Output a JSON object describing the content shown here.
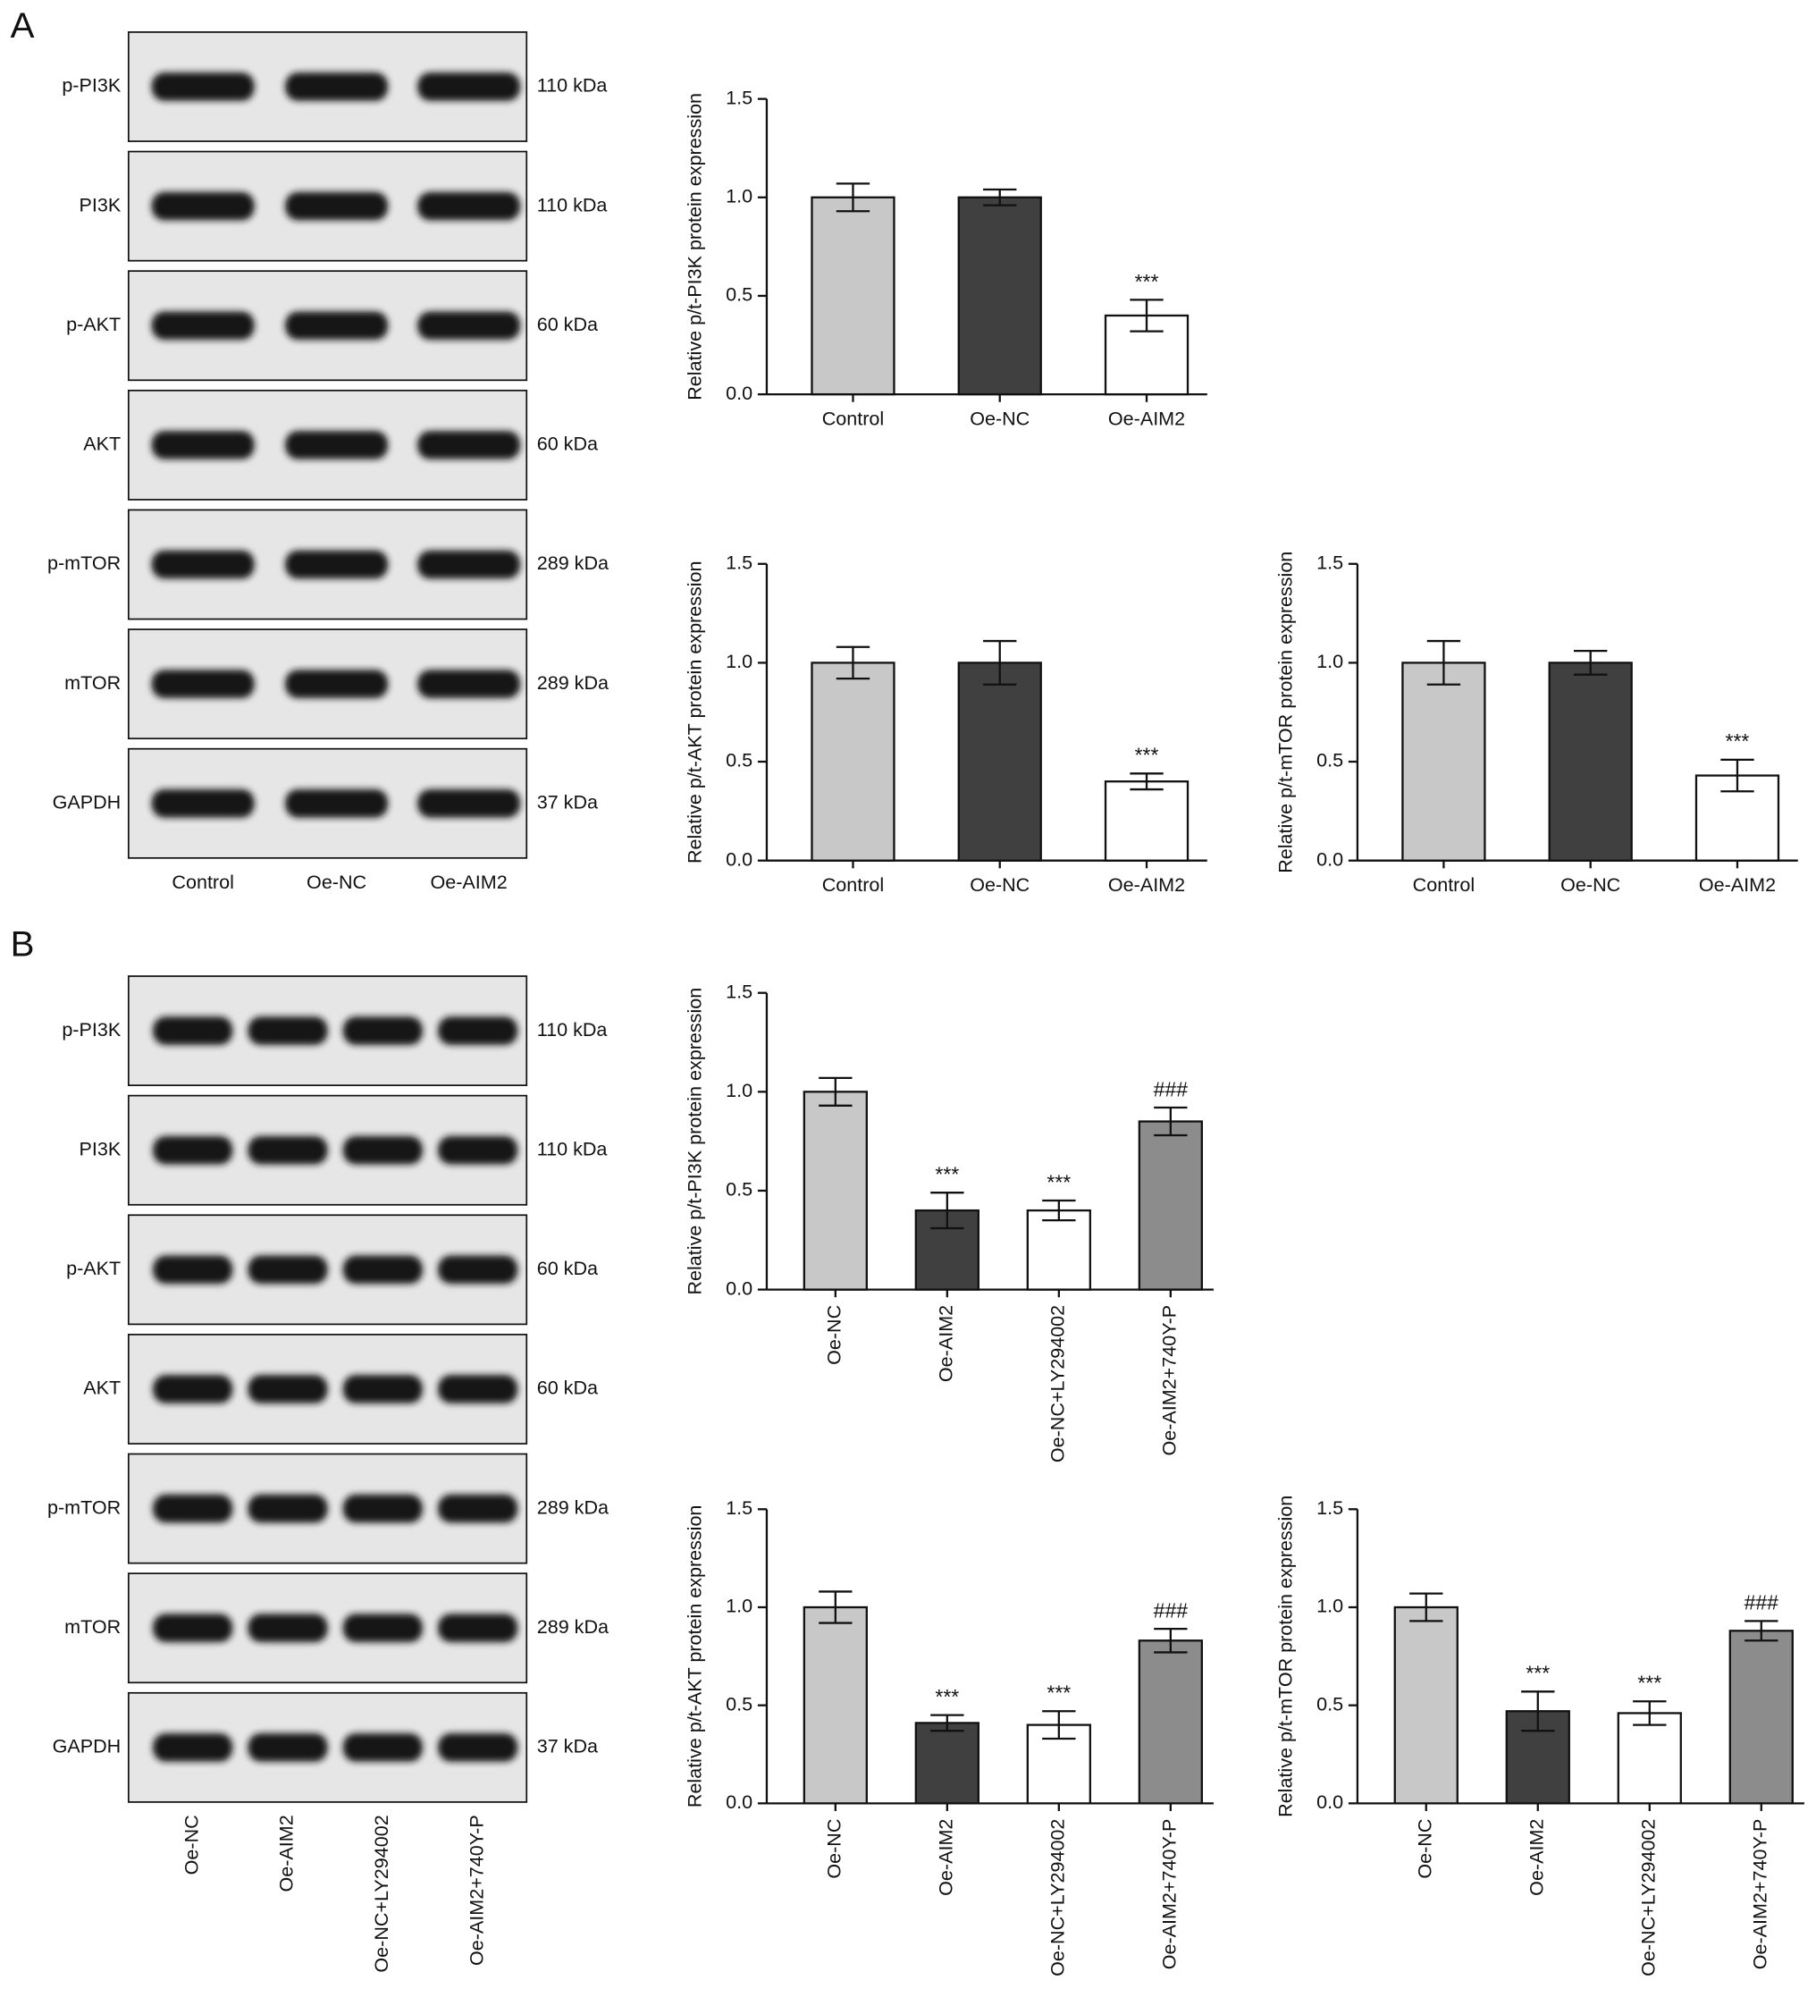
{
  "blots": [
    {
      "panel": "A",
      "lanes": [
        "Control",
        "Oe-NC",
        "Oe-AIM2"
      ],
      "rows": [
        {
          "protein": "p-PI3K",
          "size": "110 kDa"
        },
        {
          "protein": "PI3K",
          "size": "110 kDa"
        },
        {
          "protein": "p-AKT",
          "size": "60 kDa"
        },
        {
          "protein": "AKT",
          "size": "60 kDa"
        },
        {
          "protein": "p-mTOR",
          "size": "289 kDa"
        },
        {
          "protein": "mTOR",
          "size": "289 kDa"
        },
        {
          "protein": "GAPDH",
          "size": "37 kDa"
        }
      ]
    },
    {
      "panel": "B",
      "lanes": [
        "Oe-NC",
        "Oe-AIM2",
        "Oe-NC+LY294002",
        "Oe-AIM2+740Y-P"
      ],
      "rows": [
        {
          "protein": "p-PI3K",
          "size": "110 kDa"
        },
        {
          "protein": "PI3K",
          "size": "110 kDa"
        },
        {
          "protein": "p-AKT",
          "size": "60 kDa"
        },
        {
          "protein": "AKT",
          "size": "60 kDa"
        },
        {
          "protein": "p-mTOR",
          "size": "289 kDa"
        },
        {
          "protein": "mTOR",
          "size": "289 kDa"
        },
        {
          "protein": "GAPDH",
          "size": "37 kDa"
        }
      ]
    }
  ],
  "chart_data": [
    {
      "type": "bar",
      "ylabel": "Relative p/t-PI3K protein expression",
      "categories": [
        "Control",
        "Oe-NC",
        "Oe-AIM2"
      ],
      "values": [
        1.0,
        1.0,
        0.4
      ],
      "errors": [
        0.07,
        0.04,
        0.08
      ],
      "colors": [
        "#c8c8c8",
        "#404040",
        "#ffffff"
      ],
      "bar_labels": [
        null,
        null,
        "***"
      ],
      "rotated_labels": false,
      "ylim": [
        0,
        1.5
      ],
      "yticks": [
        {
          "value": 0,
          "label": "0.0"
        },
        {
          "value": 0.5,
          "label": "0.5"
        },
        {
          "value": 1,
          "label": "1.0"
        },
        {
          "value": 1.5,
          "label": "1.5"
        }
      ]
    },
    {
      "type": "bar",
      "ylabel": "Relative p/t-AKT protein expression",
      "categories": [
        "Control",
        "Oe-NC",
        "Oe-AIM2"
      ],
      "values": [
        1.0,
        1.0,
        0.4
      ],
      "errors": [
        0.08,
        0.11,
        0.04
      ],
      "colors": [
        "#c8c8c8",
        "#404040",
        "#ffffff"
      ],
      "bar_labels": [
        null,
        null,
        "***"
      ],
      "rotated_labels": false,
      "ylim": [
        0,
        1.5
      ],
      "yticks": [
        {
          "value": 0,
          "label": "0.0"
        },
        {
          "value": 0.5,
          "label": "0.5"
        },
        {
          "value": 1,
          "label": "1.0"
        },
        {
          "value": 1.5,
          "label": "1.5"
        }
      ]
    },
    {
      "type": "bar",
      "ylabel": "Relative p/t-mTOR protein expression",
      "categories": [
        "Control",
        "Oe-NC",
        "Oe-AIM2"
      ],
      "values": [
        1.0,
        1.0,
        0.43
      ],
      "errors": [
        0.11,
        0.06,
        0.08
      ],
      "colors": [
        "#c8c8c8",
        "#404040",
        "#ffffff"
      ],
      "bar_labels": [
        null,
        null,
        "***"
      ],
      "rotated_labels": false,
      "ylim": [
        0,
        1.5
      ],
      "yticks": [
        {
          "value": 0,
          "label": "0.0"
        },
        {
          "value": 0.5,
          "label": "0.5"
        },
        {
          "value": 1,
          "label": "1.0"
        },
        {
          "value": 1.5,
          "label": "1.5"
        }
      ]
    },
    {
      "type": "bar",
      "ylabel": "Relative p/t-PI3K protein expression",
      "categories": [
        "Oe-NC",
        "Oe-AIM2",
        "Oe-NC+LY294002",
        "Oe-AIM2+740Y-P"
      ],
      "values": [
        1.0,
        0.4,
        0.4,
        0.85
      ],
      "errors": [
        0.07,
        0.09,
        0.05,
        0.07
      ],
      "colors": [
        "#c8c8c8",
        "#404040",
        "#ffffff",
        "#8c8c8c"
      ],
      "bar_labels": [
        null,
        "***",
        "***",
        "###"
      ],
      "rotated_labels": true,
      "ylim": [
        0,
        1.5
      ],
      "yticks": [
        {
          "value": 0,
          "label": "0.0"
        },
        {
          "value": 0.5,
          "label": "0.5"
        },
        {
          "value": 1,
          "label": "1.0"
        },
        {
          "value": 1.5,
          "label": "1.5"
        }
      ]
    },
    {
      "type": "bar",
      "ylabel": "Relative p/t-AKT protein expression",
      "categories": [
        "Oe-NC",
        "Oe-AIM2",
        "Oe-NC+LY294002",
        "Oe-AIM2+740Y-P"
      ],
      "values": [
        1.0,
        0.41,
        0.4,
        0.83
      ],
      "errors": [
        0.08,
        0.04,
        0.07,
        0.06
      ],
      "colors": [
        "#c8c8c8",
        "#404040",
        "#ffffff",
        "#8c8c8c"
      ],
      "bar_labels": [
        null,
        "***",
        "***",
        "###"
      ],
      "rotated_labels": true,
      "ylim": [
        0,
        1.5
      ],
      "yticks": [
        {
          "value": 0,
          "label": "0.0"
        },
        {
          "value": 0.5,
          "label": "0.5"
        },
        {
          "value": 1,
          "label": "1.0"
        },
        {
          "value": 1.5,
          "label": "1.5"
        }
      ]
    },
    {
      "type": "bar",
      "ylabel": "Relative p/t-mTOR protein expression",
      "categories": [
        "Oe-NC",
        "Oe-AIM2",
        "Oe-NC+LY294002",
        "Oe-AIM2+740Y-P"
      ],
      "values": [
        1.0,
        0.47,
        0.46,
        0.88
      ],
      "errors": [
        0.07,
        0.1,
        0.06,
        0.05
      ],
      "colors": [
        "#c8c8c8",
        "#404040",
        "#ffffff",
        "#8c8c8c"
      ],
      "bar_labels": [
        null,
        "***",
        "***",
        "###"
      ],
      "rotated_labels": true,
      "ylim": [
        0,
        1.5
      ],
      "yticks": [
        {
          "value": 0,
          "label": "0.0"
        },
        {
          "value": 0.5,
          "label": "0.5"
        },
        {
          "value": 1,
          "label": "1.0"
        },
        {
          "value": 1.5,
          "label": "1.5"
        }
      ]
    }
  ]
}
